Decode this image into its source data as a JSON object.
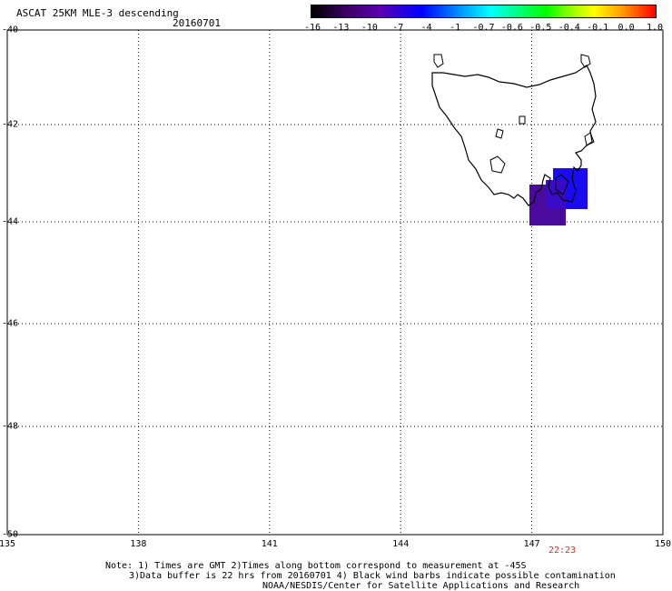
{
  "header": {
    "title": "ASCAT 25KM MLE-3 descending",
    "date": "20160701"
  },
  "colorbar": {
    "labels": [
      "-16",
      "-13",
      "-10",
      "-7",
      "-4",
      "-1",
      "-0.7",
      "-0.6",
      "-0.5",
      "-0.4",
      "-0.1",
      "0.0",
      "1.0"
    ]
  },
  "axes": {
    "longitude_labels": [
      "135",
      "138",
      "141",
      "144",
      "147",
      "150"
    ],
    "latitude_labels": [
      "-40",
      "-42",
      "-44",
      "-46",
      "-48",
      "-50"
    ]
  },
  "overlay": {
    "time_label": "22:23"
  },
  "notes": {
    "line1": "Note: 1) Times are GMT 2)Times along bottom correspond to measurement at -45S",
    "line2": "3)Data buffer is 22 hrs from 20160701 4) Black wind barbs indicate possible contamination",
    "line3": "NOAA/NESDIS/Center for Satellite Applications and Research"
  },
  "colors": {
    "coastline": "#000000",
    "cell_purple": "#4b0a9e",
    "cell_blue": "#1a0cf2",
    "time_label": "#e0301e"
  }
}
